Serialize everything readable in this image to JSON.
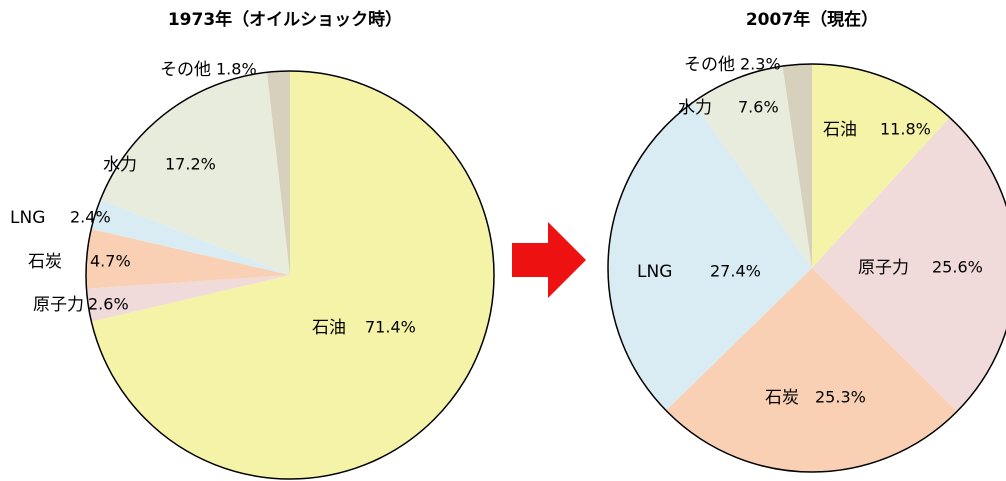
{
  "chart_data": [
    {
      "type": "pie",
      "title": "1973年（オイルショック時）",
      "categories": [
        "石油",
        "原子力",
        "石炭",
        "LNG",
        "水力",
        "その他"
      ],
      "values": [
        71.4,
        2.6,
        4.7,
        2.4,
        17.2,
        1.8
      ],
      "value_labels": [
        "71.4%",
        "2.6%",
        "4.7%",
        "2.4%",
        "17.2%",
        "1.8%"
      ],
      "colors": [
        "#f5f3a8",
        "#f0dada",
        "#fad0b4",
        "#d9ecf3",
        "#e8ecdc",
        "#d6d0bc"
      ]
    },
    {
      "type": "pie",
      "title": "2007年（現在）",
      "categories": [
        "石油",
        "原子力",
        "石炭",
        "LNG",
        "水力",
        "その他"
      ],
      "values": [
        11.8,
        25.6,
        25.3,
        27.4,
        7.6,
        2.3
      ],
      "value_labels": [
        "11.8%",
        "25.6%",
        "25.3%",
        "27.4%",
        "7.6%",
        "2.3%"
      ],
      "colors": [
        "#f5f3a8",
        "#f0dada",
        "#fad0b4",
        "#d9ecf3",
        "#e8ecdc",
        "#d6d0bc"
      ]
    }
  ]
}
